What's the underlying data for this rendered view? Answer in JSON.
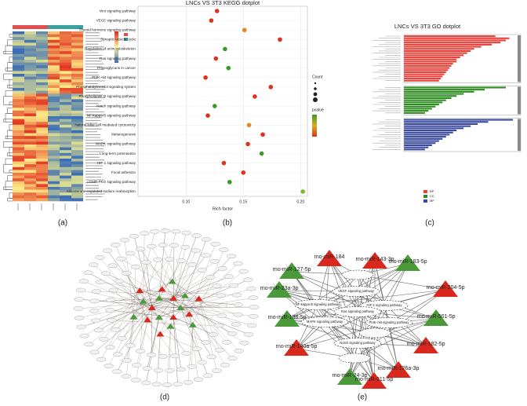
{
  "panel_labels": [
    "(a)",
    "(b)",
    "(c)",
    "(d)",
    "(e)"
  ],
  "chart_data": [
    {
      "type": "scatter",
      "title": "LNCs VS 3T3 KEGG dotplot",
      "x_label": "Rich factor",
      "categories": [
        "Wnt signaling pathway",
        "VEGF signaling pathway",
        "Thyroid hormone signaling pathway",
        "Synaptic vesicle cycle",
        "Regulation of actin cytoskeleton",
        "Ras signaling pathway",
        "Proteoglycans in cancer",
        "PI3K-Akt signaling pathway",
        "Phosphatidylinositol signaling system",
        "Phospholipase D signaling pathway",
        "Notch signaling pathway",
        "NF-kappa B signaling pathway",
        "Natural killer cell mediated cytotoxicity",
        "Melanogenesis",
        "MAPK signaling pathway",
        "Long-term potentiation",
        "HIF-1 signaling pathway",
        "Focal adhesion",
        "cGMP-PKG signaling pathway",
        "Aldosterone-regulated sodium reabsorption"
      ],
      "values": [
        0.127,
        0.122,
        0.151,
        0.182,
        0.134,
        0.126,
        0.137,
        0.117,
        0.174,
        0.16,
        0.125,
        0.119,
        0.155,
        0.167,
        0.154,
        0.166,
        0.133,
        0.15,
        0.138,
        0.202
      ],
      "colors": [
        "#e0301e",
        "#e0301e",
        "#e08a1e",
        "#e0301e",
        "#3a9a28",
        "#e0301e",
        "#3a9a28",
        "#e0301e",
        "#e0301e",
        "#e0301e",
        "#3a9a28",
        "#e0301e",
        "#e08a1e",
        "#e0301e",
        "#e0301e",
        "#3a9a28",
        "#e0301e",
        "#e0301e",
        "#3a9a28",
        "#7ab82a"
      ],
      "xlim": [
        0.058,
        0.206
      ],
      "xticks": [
        {
          "value": 0.1,
          "label": "0.10"
        },
        0.15,
        {
          "value": 0.2,
          "label": "0.20"
        }
      ],
      "legend_titles": [
        "Count",
        "pvalue"
      ],
      "grid": true
    },
    {
      "type": "bar",
      "title": "LNCs VS 3T3 GO dotplot",
      "series": [
        {
          "name": "BP",
          "color": "#e8413a",
          "values": [
            52,
            60,
            58,
            55,
            50,
            44,
            40,
            38,
            36,
            34,
            32,
            30,
            30,
            28,
            27,
            26,
            25,
            24,
            23,
            22,
            21,
            20
          ]
        },
        {
          "name": "CC",
          "color": "#2e8b22",
          "values": [
            58,
            46,
            40,
            34,
            30,
            27,
            24,
            22,
            20,
            18,
            16,
            14,
            12
          ]
        },
        {
          "name": "MF",
          "color": "#3a4a9a",
          "values": [
            62,
            48,
            42,
            38,
            34,
            30,
            28,
            26,
            24,
            22,
            20,
            18,
            16,
            14,
            12
          ]
        }
      ]
    }
  ],
  "network": {
    "mirnas": [
      {
        "label": "rno-miR-184",
        "color": "#d9281e"
      },
      {
        "label": "rno-miR-143-3p",
        "color": "#d9281e"
      },
      {
        "label": "rno-miR-127-5p",
        "color": "#4a9a3a"
      },
      {
        "label": "rno-miR-183-5p",
        "color": "#4a9a3a"
      },
      {
        "label": "rno-miR-23a-3p",
        "color": "#4a9a3a"
      },
      {
        "label": "rno-miR-204-5p",
        "color": "#d9281e"
      },
      {
        "label": "rno-miR-138-5p",
        "color": "#4a9a3a"
      },
      {
        "label": "rno-miR-501-5p",
        "color": "#4a9a3a"
      },
      {
        "label": "rno-miR-140a-5p",
        "color": "#d9281e"
      },
      {
        "label": "rno-miR-182-5p",
        "color": "#d9281e"
      },
      {
        "label": "rno-miR-24-3p",
        "color": "#4a9a3a"
      },
      {
        "label": "rno-miR-126a-3p",
        "color": "#d9281e"
      },
      {
        "label": "rno-miR-211-5p",
        "color": "#d9281e"
      }
    ],
    "pathways": [
      "VEGF signaling pathway",
      "NF-kappa B signaling pathway",
      "HIF-1 signaling pathway",
      "Ras signaling pathway",
      "MAPK signaling pathway",
      "PI3K-Akt signaling pathway",
      "Notch signaling pathway"
    ]
  }
}
